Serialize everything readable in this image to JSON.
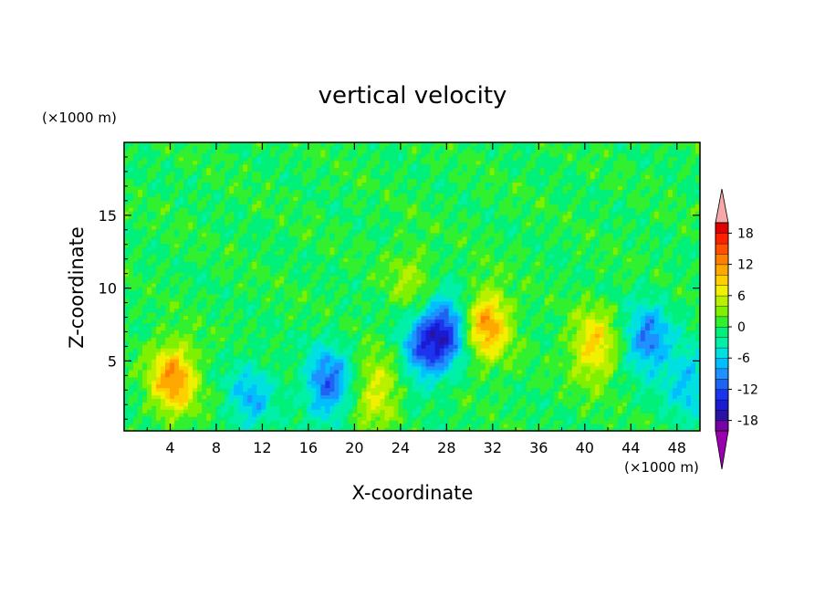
{
  "chart_data": {
    "type": "heatmap",
    "title": "vertical velocity",
    "xlabel": "X-coordinate",
    "ylabel": "Z-coordinate",
    "x_unit_label": "(×1000 m)",
    "y_unit_label": "(×1000 m)",
    "xlim": [
      0,
      50
    ],
    "ylim": [
      0.2,
      20
    ],
    "x_ticks": [
      4,
      8,
      12,
      16,
      20,
      24,
      28,
      32,
      36,
      40,
      44,
      48
    ],
    "y_ticks": [
      5,
      10,
      15
    ],
    "grid": false,
    "colorbar": {
      "position": "right",
      "levels": [
        -20,
        -18,
        -16,
        -14,
        -12,
        -10,
        -8,
        -6,
        -4,
        -2,
        0,
        2,
        4,
        6,
        8,
        10,
        12,
        14,
        16,
        18,
        20
      ],
      "tick_labels": [
        18,
        12,
        6,
        0,
        -6,
        -12,
        -18
      ],
      "colors": [
        "#7a00a8",
        "#2a13a3",
        "#1a1ad0",
        "#1c34f0",
        "#1e64f0",
        "#1e90ff",
        "#00bfff",
        "#00e0e0",
        "#00f0a8",
        "#00f07a",
        "#30f030",
        "#7ef000",
        "#b8f000",
        "#f0f000",
        "#ffd000",
        "#ffa800",
        "#ff8000",
        "#ff5000",
        "#ff2000",
        "#e00000"
      ],
      "under_color": "#9a00b0",
      "over_color": "#f5a8a8"
    },
    "features": [
      {
        "x": 4.3,
        "z": 3.8,
        "w": 12
      },
      {
        "x": 31.5,
        "z": 7.5,
        "w": 12
      },
      {
        "x": 40.8,
        "z": 6.0,
        "w": 9
      },
      {
        "x": 22.0,
        "z": 3.0,
        "w": 7
      },
      {
        "x": 25.0,
        "z": 10.5,
        "w": 4
      },
      {
        "x": 17.7,
        "z": 3.5,
        "w": -11
      },
      {
        "x": 26.0,
        "z": 5.8,
        "w": -10
      },
      {
        "x": 28.0,
        "z": 7.2,
        "w": -12
      },
      {
        "x": 45.5,
        "z": 6.5,
        "w": -10
      },
      {
        "x": 11.0,
        "z": 2.5,
        "w": -7
      },
      {
        "x": 49.0,
        "z": 3.5,
        "w": -7
      }
    ]
  }
}
